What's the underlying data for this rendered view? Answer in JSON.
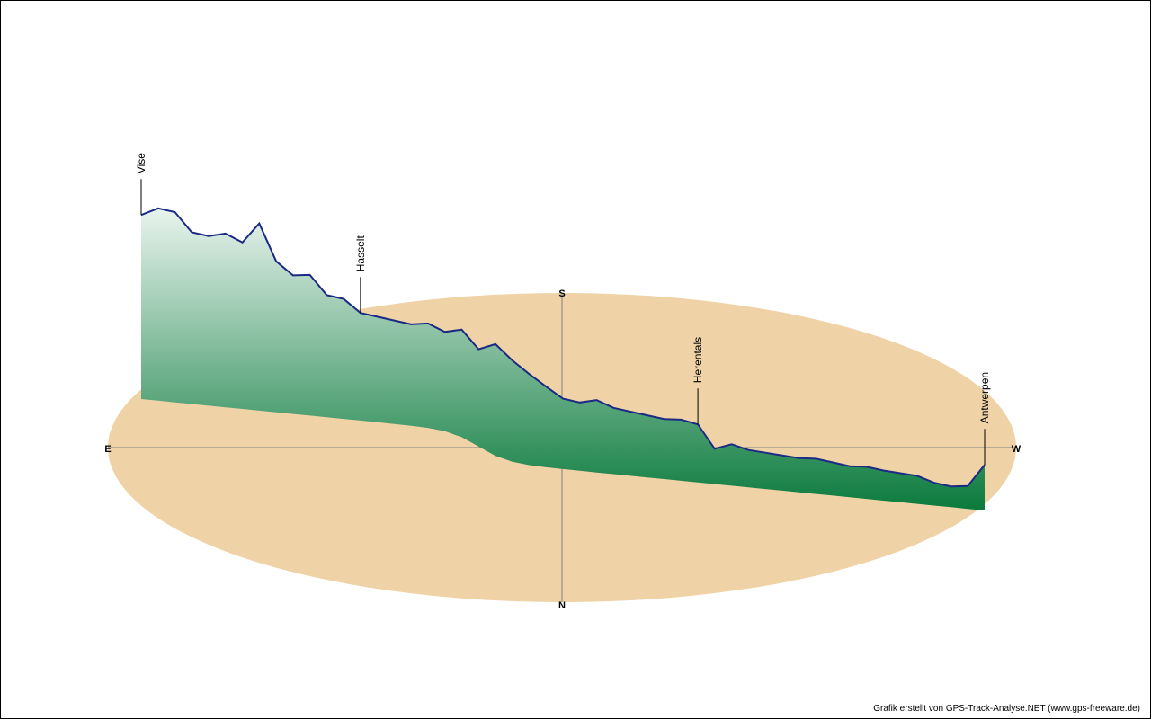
{
  "credit_text": "Grafik erstellt von GPS-Track-Analyse.NET (www.gps-freeware.de)",
  "colors": {
    "ground": "#efd3a6",
    "line": "#1a2a85",
    "fill_top": "#e9f4ee",
    "fill_bottom": "#0a7a3c",
    "axis": "#7f7f7f"
  },
  "chart_data": {
    "type": "area",
    "compass": {
      "east": "E",
      "west": "W",
      "south": "S",
      "north": "N"
    },
    "places": [
      {
        "name": "Visé",
        "t": 0.0
      },
      {
        "name": "Hasselt",
        "t": 0.26
      },
      {
        "name": "Herentals",
        "t": 0.67
      },
      {
        "name": "Antwerpen",
        "t": 1.0
      }
    ],
    "series": [
      {
        "t": [
          0.0,
          0.02,
          0.04,
          0.06,
          0.08,
          0.1,
          0.12,
          0.14,
          0.16,
          0.18,
          0.2,
          0.22,
          0.24,
          0.26,
          0.28,
          0.3,
          0.32,
          0.34,
          0.36,
          0.38,
          0.4,
          0.42,
          0.44,
          0.46,
          0.48,
          0.5,
          0.52,
          0.54,
          0.56,
          0.58,
          0.6,
          0.62,
          0.64,
          0.66,
          0.68,
          0.7,
          0.72,
          0.74,
          0.76,
          0.78,
          0.8,
          0.82,
          0.84,
          0.86,
          0.88,
          0.9,
          0.92,
          0.94,
          0.96,
          0.98,
          1.0
        ],
        "elevation": [
          152,
          160,
          158,
          140,
          138,
          142,
          135,
          155,
          120,
          108,
          110,
          92,
          90,
          78,
          76,
          74,
          72,
          75,
          70,
          78,
          68,
          82,
          72,
          62,
          52,
          42,
          40,
          44,
          38,
          36,
          34,
          32,
          33,
          30,
          8,
          14,
          10,
          9,
          8,
          7,
          8,
          6,
          4,
          5,
          3,
          2,
          1,
          -4,
          -6,
          -4,
          18
        ]
      }
    ]
  }
}
